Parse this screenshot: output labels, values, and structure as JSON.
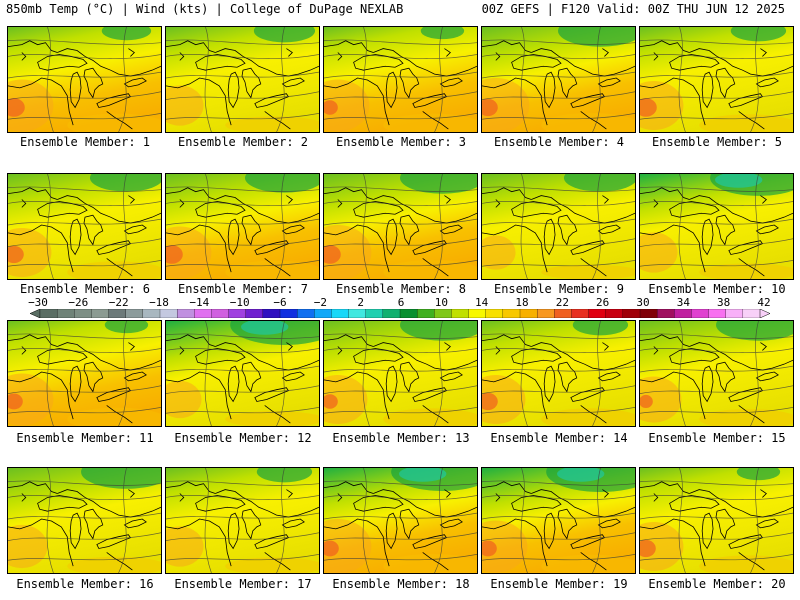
{
  "header": {
    "left": "850mb Temp (°C) | Wind (kts) | College of DuPage NEXLAB",
    "right": "00Z GEFS | F120 Valid: 00Z THU JUN 12 2025"
  },
  "members": [
    "Ensemble Member: 1",
    "Ensemble Member: 2",
    "Ensemble Member: 3",
    "Ensemble Member: 4",
    "Ensemble Member: 5",
    "Ensemble Member: 6",
    "Ensemble Member: 7",
    "Ensemble Member: 8",
    "Ensemble Member: 9",
    "Ensemble Member: 10",
    "Ensemble Member: 11",
    "Ensemble Member: 12",
    "Ensemble Member: 13",
    "Ensemble Member: 14",
    "Ensemble Member: 15",
    "Ensemble Member: 16",
    "Ensemble Member: 17",
    "Ensemble Member: 18",
    "Ensemble Member: 19",
    "Ensemble Member: 20"
  ],
  "colorbar": {
    "labels": [
      "−30",
      "−26",
      "−22",
      "−18",
      "−14",
      "−10",
      "−6",
      "−2",
      "2",
      "6",
      "10",
      "14",
      "18",
      "22",
      "26",
      "30",
      "34",
      "38",
      "42"
    ],
    "colors": [
      "#5a6e64",
      "#6f8378",
      "#7d8f85",
      "#8b9b92",
      "#6c7a7a",
      "#8c9c9c",
      "#a8b8c0",
      "#c4c8e0",
      "#c090e0",
      "#e070f0",
      "#d060e0",
      "#a040e0",
      "#7020d0",
      "#3010c0",
      "#1030e0",
      "#1070f0",
      "#10a8f8",
      "#18d8f8",
      "#40e8e0",
      "#20d0b0",
      "#10b070",
      "#089030",
      "#40b020",
      "#80c818",
      "#c0e000",
      "#f8f800",
      "#f8e000",
      "#f8c800",
      "#f8b000",
      "#f89820",
      "#f06020",
      "#e83020",
      "#e00010",
      "#c80010",
      "#a00008",
      "#800008",
      "#a01060",
      "#c020a0",
      "#e040d0",
      "#f870f0",
      "#f8b0f8",
      "#f8d0f8"
    ]
  }
}
